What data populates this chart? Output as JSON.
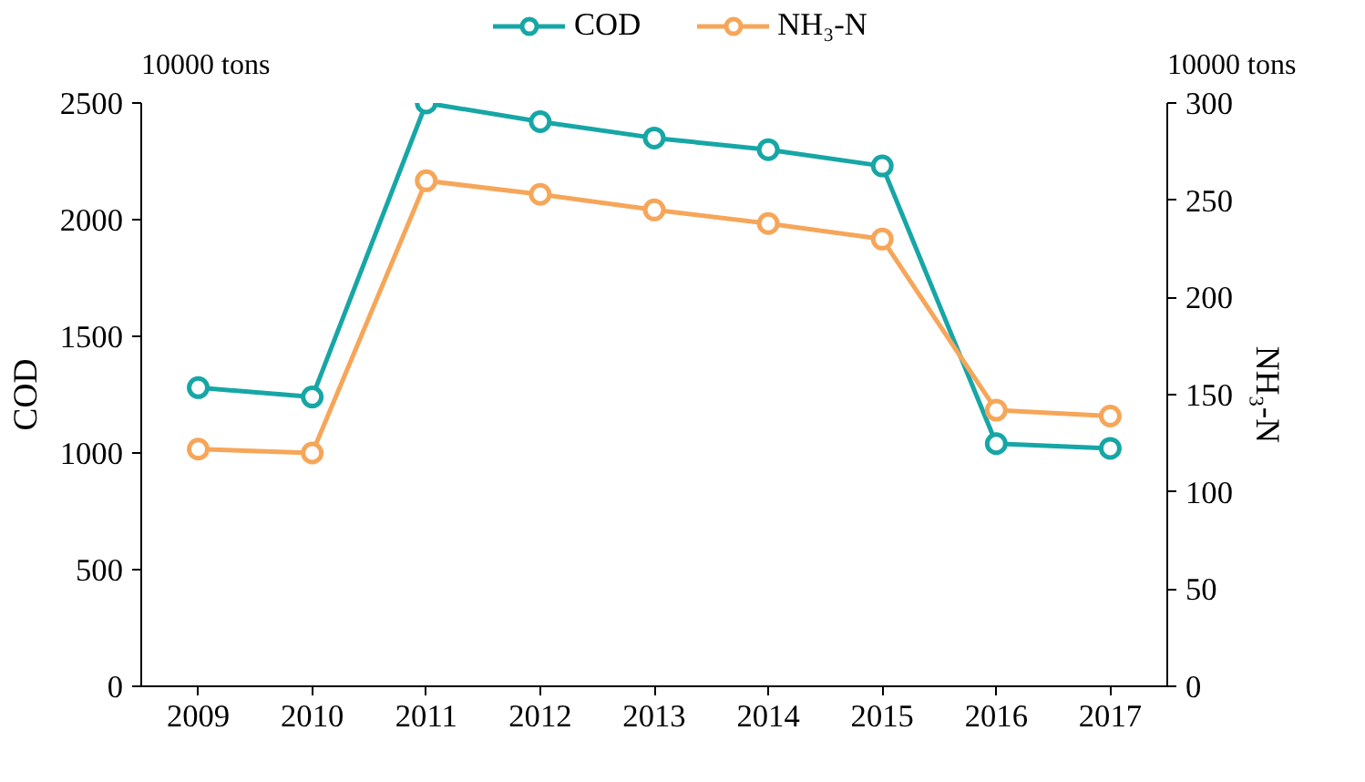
{
  "chart_data": {
    "type": "line",
    "categories": [
      "2009",
      "2010",
      "2011",
      "2012",
      "2013",
      "2014",
      "2015",
      "2016",
      "2017"
    ],
    "series": [
      {
        "name": "COD",
        "color": "#17a6a6",
        "values": [
          1280,
          1240,
          2500,
          2420,
          2350,
          2300,
          2230,
          1040,
          1020
        ]
      },
      {
        "name": "NH₃-N",
        "color": "#f6a659",
        "axis": "y2",
        "values": [
          122,
          120,
          260,
          253,
          245,
          238,
          230,
          142,
          139
        ]
      }
    ],
    "ylabel": "COD",
    "y2label": "NH₃-N",
    "ylim": [
      0,
      2500
    ],
    "yticks": [
      0,
      500,
      1000,
      1500,
      2000,
      2500
    ],
    "y2lim": [
      0,
      300
    ],
    "y2ticks": [
      0,
      50,
      100,
      150,
      200,
      250,
      300
    ],
    "annotations": [
      "10000 tons",
      "10000 tons"
    ],
    "legend": "top",
    "grid": false,
    "marker": "circle",
    "line_style": "solid"
  }
}
